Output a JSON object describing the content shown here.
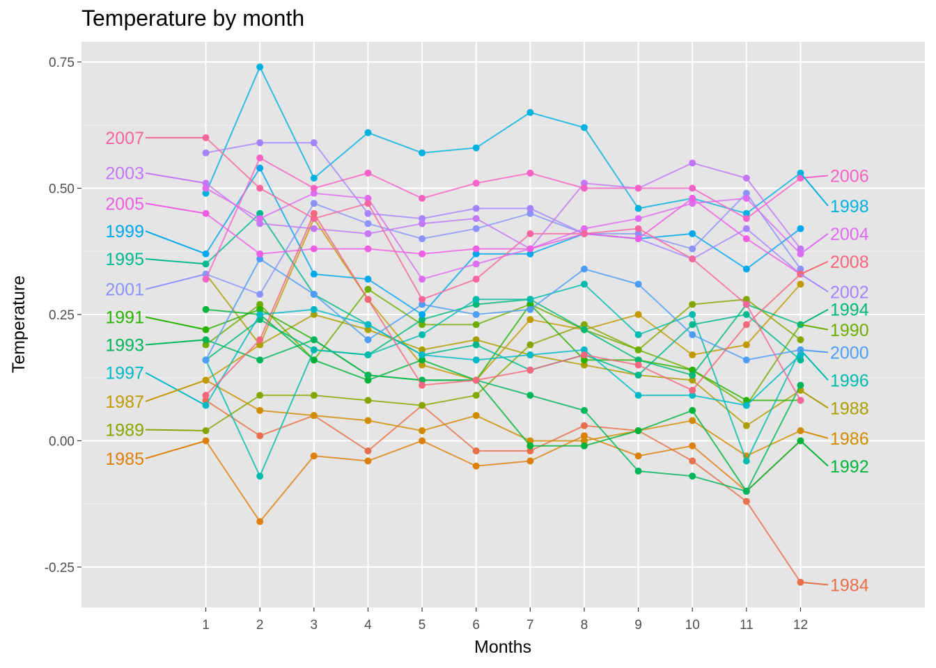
{
  "chart_data": {
    "type": "line",
    "title": "Temperature by month",
    "xlabel": "Months",
    "ylabel": "Temperature",
    "x": [
      1,
      2,
      3,
      4,
      5,
      6,
      7,
      8,
      9,
      10,
      11,
      12
    ],
    "xlim": [
      -1.3,
      14.3
    ],
    "ylim": [
      -0.33,
      0.79
    ],
    "yticks": [
      -0.25,
      0,
      0.25,
      0.5,
      0.75
    ],
    "ytick_labels": [
      "-0.25",
      "0.00",
      "0.25",
      "0.50",
      "0.75"
    ],
    "grid": true,
    "legend": "none (direct labels at line ends, odd years left, even years right)",
    "series": [
      {
        "name": "1984",
        "color": "#E76F49",
        "values": [
          0.08,
          0.01,
          0.05,
          -0.02,
          0.07,
          -0.02,
          -0.02,
          0.03,
          0.02,
          -0.04,
          -0.12,
          -0.28
        ]
      },
      {
        "name": "1985",
        "color": "#DD7F0B",
        "values": [
          0.0,
          -0.16,
          -0.03,
          -0.04,
          0.0,
          -0.05,
          -0.04,
          0.01,
          -0.03,
          -0.01,
          -0.1,
          0.0
        ]
      },
      {
        "name": "1986",
        "color": "#D18B00",
        "values": [
          0.12,
          0.06,
          0.05,
          0.04,
          0.02,
          0.05,
          0.0,
          0.0,
          0.02,
          0.04,
          -0.03,
          0.02
        ]
      },
      {
        "name": "1987",
        "color": "#C09A00",
        "values": [
          0.12,
          0.19,
          0.44,
          0.28,
          0.15,
          0.12,
          0.24,
          0.22,
          0.25,
          0.17,
          0.19,
          0.31
        ]
      },
      {
        "name": "1988",
        "color": "#AC9E00",
        "values": [
          0.33,
          0.19,
          0.25,
          0.22,
          0.18,
          0.2,
          0.17,
          0.15,
          0.13,
          0.12,
          0.03,
          0.1
        ]
      },
      {
        "name": "1989",
        "color": "#85A600",
        "values": [
          0.02,
          0.09,
          0.09,
          0.08,
          0.07,
          0.09,
          0.19,
          0.23,
          0.18,
          0.27,
          0.28,
          0.2
        ]
      },
      {
        "name": "1990",
        "color": "#6DAD00",
        "values": [
          0.19,
          0.27,
          0.16,
          0.3,
          0.23,
          0.23,
          0.27,
          0.22,
          0.18,
          0.14,
          0.07,
          0.23
        ]
      },
      {
        "name": "1991",
        "color": "#2AB200",
        "values": [
          0.22,
          0.26,
          0.2,
          0.13,
          0.12,
          0.12,
          0.27,
          0.16,
          0.16,
          0.14,
          0.08,
          0.08
        ]
      },
      {
        "name": "1992",
        "color": "#00B43B",
        "values": [
          0.26,
          0.25,
          0.16,
          0.12,
          0.16,
          0.12,
          -0.01,
          -0.01,
          0.02,
          0.06,
          -0.1,
          0.0
        ]
      },
      {
        "name": "1993",
        "color": "#00B55A",
        "values": [
          0.2,
          0.16,
          0.2,
          0.13,
          0.12,
          0.12,
          0.09,
          0.06,
          -0.06,
          -0.07,
          -0.1,
          0.11
        ]
      },
      {
        "name": "1994",
        "color": "#00B874",
        "values": [
          0.16,
          0.24,
          0.18,
          0.17,
          0.24,
          0.27,
          0.28,
          0.22,
          0.16,
          0.13,
          0.27,
          0.23
        ]
      },
      {
        "name": "1995",
        "color": "#00B890",
        "values": [
          0.35,
          0.45,
          0.29,
          0.23,
          0.17,
          0.19,
          0.14,
          0.17,
          0.13,
          0.23,
          0.25,
          0.16
        ]
      },
      {
        "name": "1996",
        "color": "#00BAAE",
        "values": [
          0.16,
          -0.07,
          0.18,
          0.17,
          0.21,
          0.28,
          0.28,
          0.31,
          0.21,
          0.25,
          -0.04,
          0.18
        ]
      },
      {
        "name": "1997",
        "color": "#00B9C6",
        "values": [
          0.07,
          0.25,
          0.26,
          0.23,
          0.17,
          0.16,
          0.17,
          0.18,
          0.09,
          0.09,
          0.07,
          0.17
        ]
      },
      {
        "name": "1998",
        "color": "#00B2DD",
        "values": [
          0.49,
          0.74,
          0.52,
          0.61,
          0.57,
          0.58,
          0.65,
          0.62,
          0.46,
          0.48,
          0.45,
          0.53
        ]
      },
      {
        "name": "1999",
        "color": "#00A7EC",
        "values": [
          0.37,
          0.54,
          0.33,
          0.32,
          0.25,
          0.37,
          0.37,
          0.41,
          0.4,
          0.41,
          0.34,
          0.42
        ]
      },
      {
        "name": "2000",
        "color": "#4E9DF4",
        "values": [
          0.16,
          0.36,
          0.29,
          0.2,
          0.27,
          0.25,
          0.26,
          0.34,
          0.31,
          0.21,
          0.16,
          0.18
        ]
      },
      {
        "name": "2001",
        "color": "#8A93F8",
        "values": [
          0.33,
          0.29,
          0.47,
          0.43,
          0.4,
          0.42,
          0.45,
          0.41,
          0.41,
          0.38,
          0.49,
          0.34
        ]
      },
      {
        "name": "2002",
        "color": "#A584FB",
        "values": [
          0.57,
          0.59,
          0.59,
          0.45,
          0.44,
          0.46,
          0.46,
          0.41,
          0.4,
          0.36,
          0.42,
          0.33
        ]
      },
      {
        "name": "2003",
        "color": "#C277F5",
        "values": [
          0.51,
          0.43,
          0.42,
          0.41,
          0.43,
          0.44,
          0.38,
          0.51,
          0.5,
          0.55,
          0.52,
          0.38
        ]
      },
      {
        "name": "2004",
        "color": "#DD6CF0",
        "values": [
          0.5,
          0.44,
          0.49,
          0.48,
          0.32,
          0.35,
          0.38,
          0.42,
          0.44,
          0.47,
          0.48,
          0.37
        ]
      },
      {
        "name": "2005",
        "color": "#ED5EE2",
        "values": [
          0.45,
          0.37,
          0.38,
          0.38,
          0.37,
          0.38,
          0.38,
          0.41,
          0.4,
          0.48,
          0.4,
          0.33
        ]
      },
      {
        "name": "2006",
        "color": "#F662C6",
        "values": [
          0.32,
          0.56,
          0.5,
          0.53,
          0.48,
          0.51,
          0.53,
          0.5,
          0.5,
          0.5,
          0.44,
          0.52
        ]
      },
      {
        "name": "2007",
        "color": "#F5669E",
        "values": [
          0.6,
          0.5,
          0.44,
          0.47,
          0.28,
          0.32,
          0.41,
          0.41,
          0.42,
          0.36,
          0.27,
          0.08
        ]
      },
      {
        "name": "2008",
        "color": "#F4677C",
        "values": [
          0.09,
          0.2,
          0.45,
          0.28,
          0.11,
          0.12,
          0.14,
          0.17,
          0.15,
          0.1,
          0.23,
          0.33
        ]
      }
    ],
    "labels_left": [
      {
        "series": "2007",
        "y": 0.6
      },
      {
        "series": "2003",
        "y": 0.53
      },
      {
        "series": "2005",
        "y": 0.47
      },
      {
        "series": "1999",
        "y": 0.415
      },
      {
        "series": "1995",
        "y": 0.36
      },
      {
        "series": "2001",
        "y": 0.3
      },
      {
        "series": "1991",
        "y": 0.245
      },
      {
        "series": "1993",
        "y": 0.19
      },
      {
        "series": "1997",
        "y": 0.135
      },
      {
        "series": "1987",
        "y": 0.078
      },
      {
        "series": "1989",
        "y": 0.022
      },
      {
        "series": "1985",
        "y": -0.035
      }
    ],
    "labels_right": [
      {
        "series": "2006",
        "y": 0.525
      },
      {
        "series": "1998",
        "y": 0.465
      },
      {
        "series": "2004",
        "y": 0.41
      },
      {
        "series": "2008",
        "y": 0.355
      },
      {
        "series": "2002",
        "y": 0.295
      },
      {
        "series": "1994",
        "y": 0.26
      },
      {
        "series": "1990",
        "y": 0.22
      },
      {
        "series": "2000",
        "y": 0.175
      },
      {
        "series": "1996",
        "y": 0.12
      },
      {
        "series": "1988",
        "y": 0.065
      },
      {
        "series": "1986",
        "y": 0.005
      },
      {
        "series": "1992",
        "y": -0.05
      },
      {
        "series": "1984",
        "y": -0.285
      }
    ],
    "colors": {
      "panel": "#E5E5E5",
      "grid_major": "#FFFFFF",
      "tick_text": "#4D4D4D"
    }
  }
}
